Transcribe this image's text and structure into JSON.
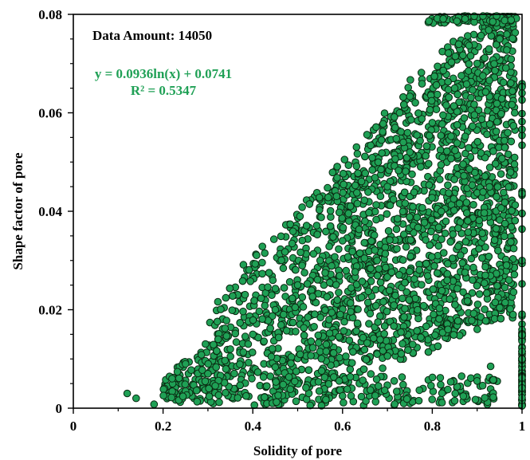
{
  "chart_data": {
    "type": "scatter",
    "xlabel": "Solidity of pore",
    "ylabel": "Shape factor of pore",
    "xlim": [
      0,
      1
    ],
    "ylim": [
      0,
      0.08
    ],
    "x_ticks": [
      "0",
      "0.2",
      "0.4",
      "0.6",
      "0.8",
      "1"
    ],
    "y_ticks": [
      "0",
      "0.02",
      "0.04",
      "0.06",
      "0.08"
    ],
    "grid": false,
    "annotations": {
      "data_amount": "Data Amount: 14050",
      "equation": "y = 0.0936ln(x) + 0.0741",
      "r_squared": "R² = 0.5347"
    },
    "fit": {
      "type": "logarithmic",
      "a": 0.0936,
      "b": 0.0741
    },
    "point_color": "#1fa055",
    "point_edge": "#0b2a12",
    "annotation_color": "#1fa055",
    "series": [
      {
        "values_sample": [
          [
            0.12,
            0.003
          ],
          [
            0.14,
            0.002
          ],
          [
            0.18,
            0.0008
          ],
          [
            0.22,
            0.006
          ],
          [
            0.25,
            0.009
          ],
          [
            0.3,
            0.007
          ],
          [
            0.35,
            0.012
          ],
          [
            0.4,
            0.015
          ],
          [
            0.45,
            0.02
          ],
          [
            0.5,
            0.025
          ],
          [
            0.55,
            0.03
          ],
          [
            0.6,
            0.034
          ],
          [
            0.65,
            0.038
          ],
          [
            0.7,
            0.045
          ],
          [
            0.75,
            0.052
          ],
          [
            0.8,
            0.058
          ],
          [
            0.85,
            0.065
          ],
          [
            0.9,
            0.07
          ],
          [
            0.95,
            0.075
          ],
          [
            1.0,
            0.064
          ],
          [
            1.0,
            0.03
          ],
          [
            1.0,
            0.01
          ],
          [
            0.98,
            0.019
          ],
          [
            0.93,
            0.0085
          ],
          [
            0.85,
            0.0015
          ],
          [
            0.77,
            0.0015
          ],
          [
            0.68,
            0.0045
          ],
          [
            0.6,
            0.0025
          ]
        ]
      }
    ]
  }
}
